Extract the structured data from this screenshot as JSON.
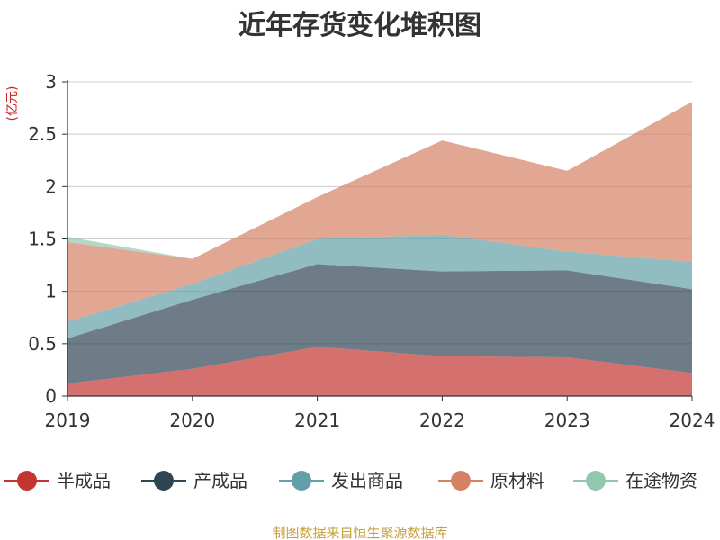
{
  "chart_data": {
    "type": "area",
    "stacked": true,
    "title": "近年存货变化堆积图",
    "unit_label": "(亿元)",
    "x": [
      "2019",
      "2020",
      "2021",
      "2022",
      "2023",
      "2024"
    ],
    "ylim": [
      0,
      3
    ],
    "yticks": [
      "0",
      "0.5",
      "1",
      "1.5",
      "2",
      "2.5",
      "3"
    ],
    "grid": true,
    "legend_position": "bottom",
    "series": [
      {
        "name": "半成品",
        "color": "#c23531",
        "values": [
          0.12,
          0.26,
          0.47,
          0.38,
          0.37,
          0.22
        ]
      },
      {
        "name": "产成品",
        "color": "#2f4554",
        "values": [
          0.43,
          0.66,
          0.79,
          0.81,
          0.83,
          0.8
        ]
      },
      {
        "name": "发出商品",
        "color": "#61a0a8",
        "values": [
          0.16,
          0.15,
          0.24,
          0.35,
          0.18,
          0.26
        ]
      },
      {
        "name": "原材料",
        "color": "#d48265",
        "values": [
          0.76,
          0.24,
          0.4,
          0.9,
          0.77,
          1.53
        ]
      },
      {
        "name": "在途物资",
        "color": "#91c7ae",
        "values": [
          0.05,
          0.0,
          0.0,
          0.0,
          0.0,
          0.0
        ]
      }
    ]
  },
  "footer": "制图数据来自恒生聚源数据库"
}
